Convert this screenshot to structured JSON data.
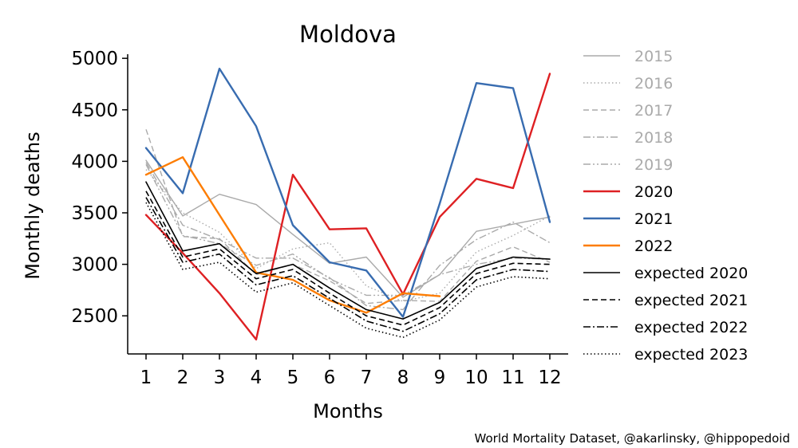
{
  "chart_data": {
    "type": "line",
    "title": "Moldova",
    "xlabel": "Months",
    "ylabel": "Monthly deaths",
    "x": [
      1,
      2,
      3,
      4,
      5,
      6,
      7,
      8,
      9,
      10,
      11,
      12
    ],
    "xlim": [
      0.5,
      12.5
    ],
    "ylim": [
      2130,
      5040
    ],
    "yticks": [
      2500,
      3000,
      3500,
      4000,
      4500,
      5000
    ],
    "grid": false,
    "legend_position": "right",
    "series": [
      {
        "name": "2015",
        "color": "#aaaaaa",
        "dash": "solid",
        "width": 1.4,
        "values": [
          4010,
          3470,
          3680,
          3580,
          3290,
          3010,
          3070,
          2680,
          2900,
          3320,
          3390,
          3460
        ]
      },
      {
        "name": "2016",
        "color": "#aaaaaa",
        "dash": "dotted",
        "width": 1.4,
        "values": [
          3920,
          3500,
          3310,
          2960,
          3150,
          3210,
          2790,
          2640,
          2720,
          3120,
          3280,
          3470
        ]
      },
      {
        "name": "2017",
        "color": "#aaaaaa",
        "dash": "dashed",
        "width": 1.4,
        "values": [
          4310,
          3270,
          3250,
          2900,
          3000,
          2840,
          2620,
          2650,
          2640,
          3030,
          3170,
          3020
        ]
      },
      {
        "name": "2018",
        "color": "#aaaaaa",
        "dash": "dashdot",
        "width": 1.4,
        "values": [
          3990,
          3380,
          3240,
          3060,
          3060,
          2870,
          2600,
          2560,
          2990,
          3240,
          3410,
          3210
        ]
      },
      {
        "name": "2019",
        "color": "#aaaaaa",
        "dash": "dashdotdot",
        "width": 1.4,
        "values": [
          3970,
          3280,
          3200,
          2990,
          3100,
          2860,
          2700,
          2700,
          2900,
          3000,
          3060,
          3050
        ]
      },
      {
        "name": "2020",
        "color": "#de2023",
        "dash": "solid",
        "width": 2.4,
        "values": [
          3480,
          3110,
          2720,
          2270,
          3870,
          3340,
          3350,
          2710,
          3460,
          3830,
          3740,
          4850
        ]
      },
      {
        "name": "2021",
        "color": "#386cb0",
        "dash": "solid",
        "width": 2.4,
        "values": [
          4130,
          3690,
          4900,
          4340,
          3380,
          3020,
          2940,
          2490,
          3590,
          4760,
          4710,
          3410
        ]
      },
      {
        "name": "2022",
        "color": "#fd7d03",
        "dash": "solid",
        "width": 2.4,
        "values": [
          3870,
          4040,
          3480,
          2920,
          2850,
          2650,
          2530,
          2720,
          2690,
          null,
          null,
          null
        ]
      },
      {
        "name": "expected 2020",
        "color": "#000000",
        "dash": "solid",
        "width": 1.6,
        "values": [
          3800,
          3130,
          3200,
          2910,
          3000,
          2770,
          2560,
          2470,
          2630,
          2960,
          3070,
          3050
        ]
      },
      {
        "name": "expected 2021",
        "color": "#000000",
        "dash": "dashed",
        "width": 1.6,
        "values": [
          3710,
          3070,
          3150,
          2860,
          2950,
          2720,
          2500,
          2410,
          2580,
          2910,
          3010,
          3000
        ]
      },
      {
        "name": "expected 2022",
        "color": "#000000",
        "dash": "dashdot",
        "width": 1.6,
        "values": [
          3650,
          3020,
          3100,
          2800,
          2890,
          2670,
          2450,
          2350,
          2520,
          2850,
          2950,
          2930
        ]
      },
      {
        "name": "expected 2023",
        "color": "#000000",
        "dash": "dotted",
        "width": 1.6,
        "values": [
          3600,
          2950,
          3020,
          2730,
          2820,
          2600,
          2380,
          2290,
          2460,
          2780,
          2880,
          2860
        ]
      }
    ],
    "legend_text_colors": {
      "past_years": "#aaaaaa",
      "current": "#000000"
    },
    "source": "World Mortality Dataset, @akarlinsky, @hippopedoid"
  }
}
